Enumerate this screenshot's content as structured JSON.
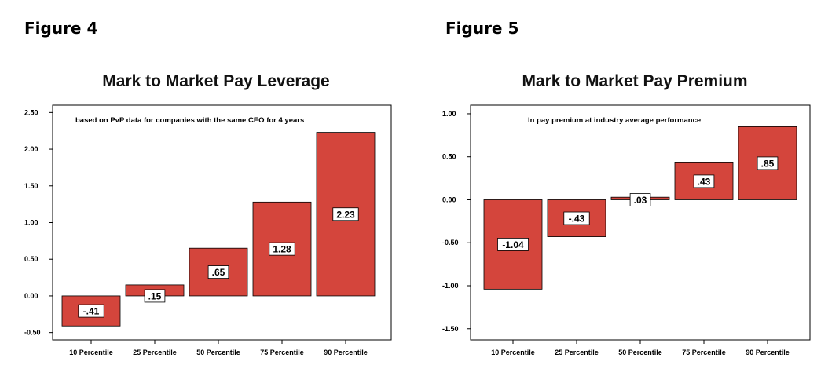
{
  "figures": [
    {
      "label": "Figure 4"
    },
    {
      "label": "Figure 5"
    }
  ],
  "colors": {
    "bar": "#d4453c",
    "bar_stroke": "#000000",
    "frame": "#000000"
  },
  "chart_data": [
    {
      "type": "bar",
      "title": "Mark to Market Pay Leverage",
      "annotation": "based on PvP data for companies with the same CEO for 4 years",
      "categories": [
        "10 Percentile",
        "25 Percentile",
        "50 Percentile",
        "75 Percentile",
        "90 Percentile"
      ],
      "values": [
        -0.41,
        0.15,
        0.65,
        1.28,
        2.23
      ],
      "data_labels": [
        "-.41",
        ".15",
        ".65",
        "1.28",
        "2.23"
      ],
      "yticks": [
        -0.5,
        0.0,
        0.5,
        1.0,
        1.5,
        2.0,
        2.5
      ],
      "ytick_labels": [
        "-0.50",
        "0.00",
        "0.50",
        "1.00",
        "1.50",
        "2.00",
        "2.50"
      ],
      "ylim": [
        -0.6,
        2.6
      ],
      "grid": false,
      "xlabel": "",
      "ylabel": ""
    },
    {
      "type": "bar",
      "title": "Mark to Market Pay Premium",
      "annotation": "In pay premium at industry average performance",
      "categories": [
        "10 Percentile",
        "25 Percentile",
        "50 Percentile",
        "75 Percentile",
        "90 Percentile"
      ],
      "values": [
        -1.04,
        -0.43,
        0.03,
        0.43,
        0.85
      ],
      "data_labels": [
        "-1.04",
        "-.43",
        ".03",
        ".43",
        ".85"
      ],
      "yticks": [
        -1.5,
        -1.0,
        -0.5,
        0.0,
        0.5,
        1.0
      ],
      "ytick_labels": [
        "-1.50",
        "-1.00",
        "-0.50",
        "0.00",
        "0.50",
        "1.00"
      ],
      "ylim": [
        -1.63,
        1.1
      ],
      "grid": false,
      "xlabel": "",
      "ylabel": ""
    }
  ]
}
